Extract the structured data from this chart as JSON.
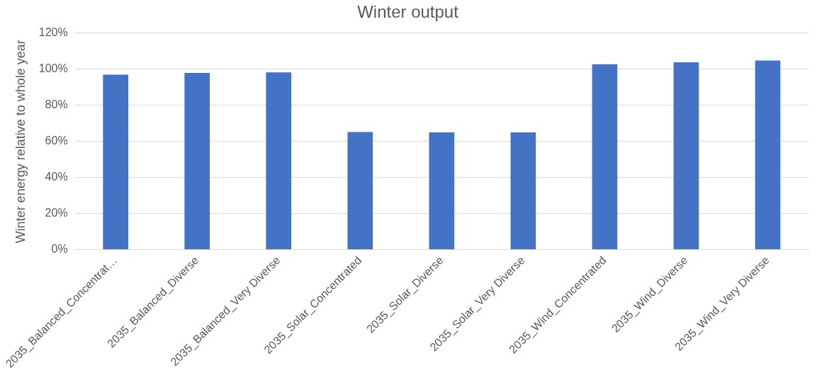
{
  "chart_data": {
    "type": "bar",
    "title": "Winter output",
    "ylabel": "Winter energy relative to whole year",
    "categories": [
      "2035_Balanced_Concentrat…",
      "2035_Balanced_Diverse",
      "2035_Balanced_Very Diverse",
      "2035_Solar_Concentrated",
      "2035_Solar_Diverse",
      "2035_Solar_Very Diverse",
      "2035_Wind_Concentrated",
      "2035_Wind_Diverse",
      "2035_Wind_Very Diverse"
    ],
    "values": [
      97,
      98,
      98.3,
      65.2,
      65,
      65,
      102.8,
      103.8,
      104.8
    ],
    "color": "#4472c4",
    "ylim": [
      0,
      120
    ],
    "yticks": [
      {
        "value": 0,
        "label": "0%"
      },
      {
        "value": 20,
        "label": "20%"
      },
      {
        "value": 40,
        "label": "40%"
      },
      {
        "value": 60,
        "label": "60%"
      },
      {
        "value": 80,
        "label": "80%"
      },
      {
        "value": 100,
        "label": "100%"
      },
      {
        "value": 120,
        "label": "120%"
      }
    ],
    "grid": "y",
    "legend": false
  }
}
